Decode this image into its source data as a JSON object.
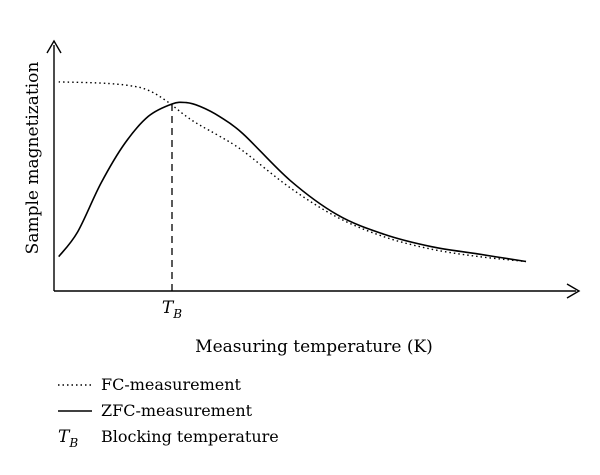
{
  "chart_data": {
    "type": "line",
    "xlabel": "Measuring temperature (K)",
    "ylabel": "Sample magnetization",
    "axis_units_arbitrary": true,
    "xlim": [
      0,
      100
    ],
    "ylim": [
      0,
      100
    ],
    "grid": false,
    "legend_position": "below-left",
    "marker": {
      "symbol": "T",
      "subscript": "B",
      "x": 25,
      "style": "dashed vertical line"
    },
    "series": [
      {
        "name": "FC-measurement",
        "style": "dotted",
        "x": [
          1,
          10,
          16,
          20,
          24,
          28,
          31,
          35,
          40,
          50,
          60,
          70,
          80,
          90,
          100
        ],
        "values": [
          85,
          84.5,
          83.5,
          81.6,
          77,
          71,
          67.3,
          63,
          57,
          42,
          30,
          22,
          17,
          14,
          12
        ]
      },
      {
        "name": "ZFC-measurement",
        "style": "solid",
        "x": [
          1,
          5,
          10,
          15,
          20,
          25,
          28,
          31,
          35,
          40,
          50,
          60,
          70,
          80,
          90,
          100
        ],
        "values": [
          14,
          24,
          44,
          60,
          71,
          76,
          76.6,
          75,
          71,
          64,
          45,
          31,
          23,
          18,
          15,
          12
        ]
      }
    ],
    "legend": [
      {
        "label": "FC-measurement",
        "style": "dotted"
      },
      {
        "label": "ZFC-measurement",
        "style": "solid"
      },
      {
        "symbol": "T",
        "subscript": "B",
        "label": "Blocking temperature"
      }
    ]
  }
}
